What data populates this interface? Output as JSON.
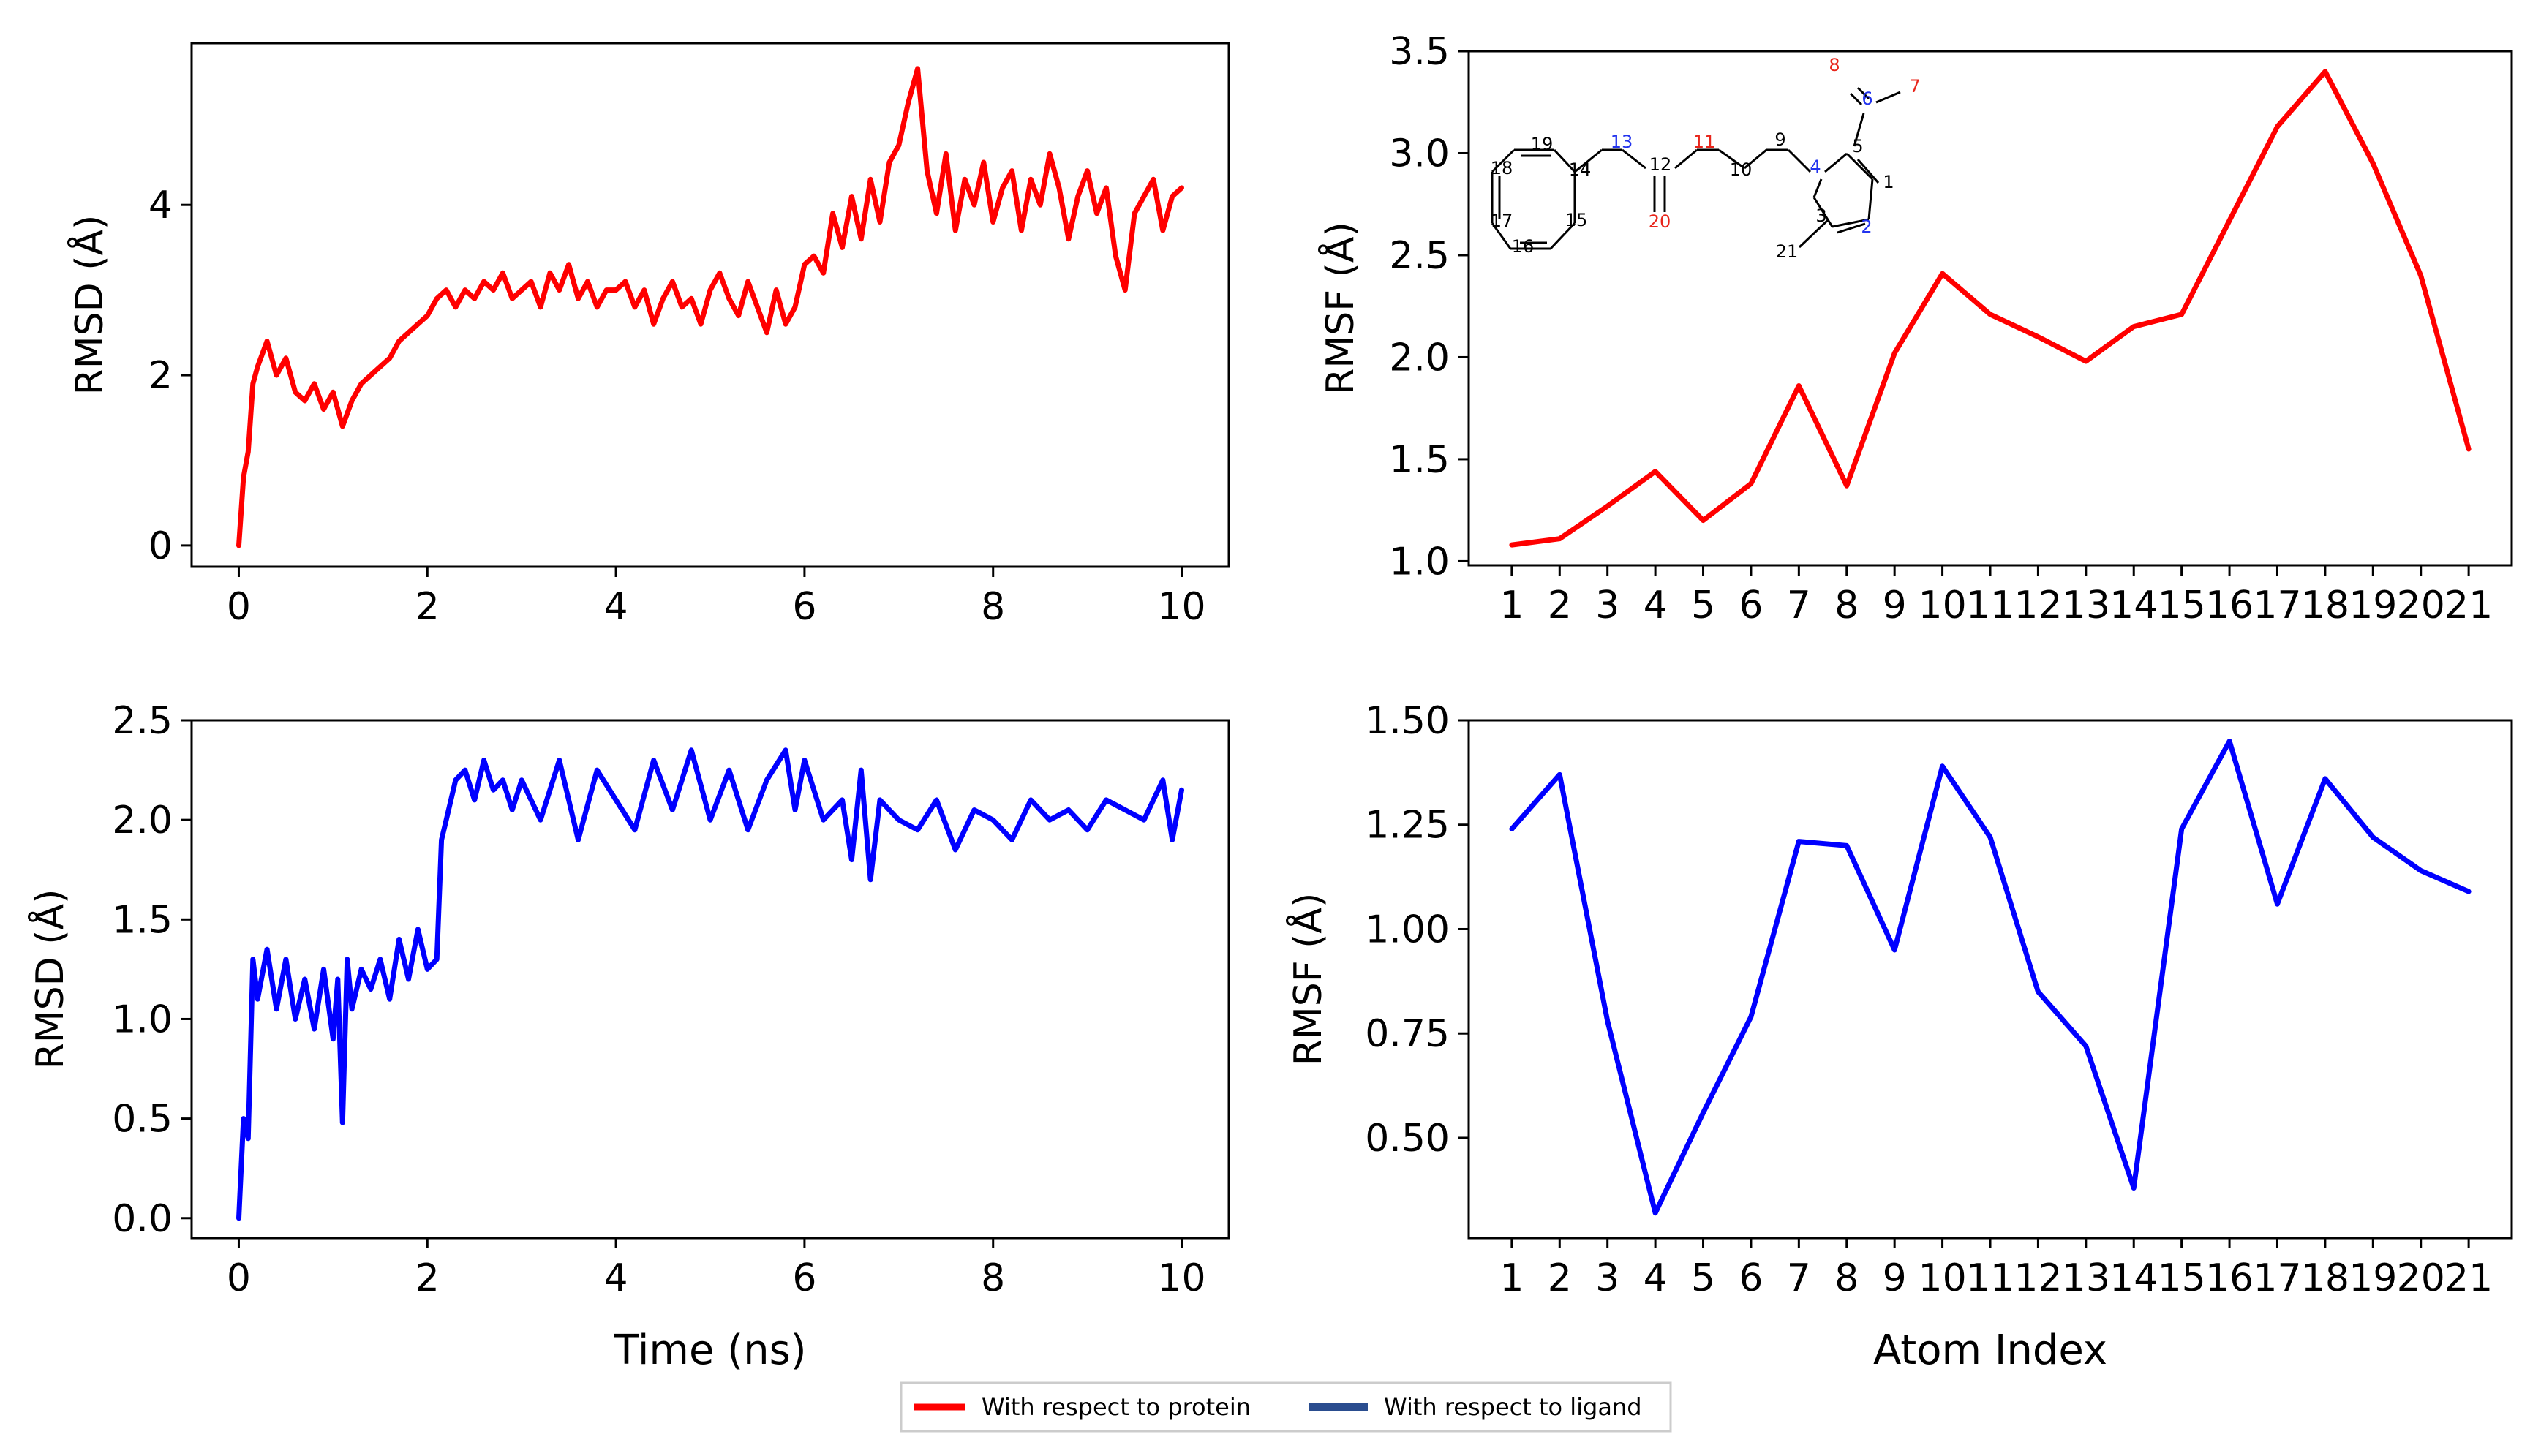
{
  "legend": {
    "entries": [
      {
        "label": "With respect to protein",
        "color": "#ff0000"
      },
      {
        "label": "With respect to ligand",
        "color": "#2a4d8f"
      }
    ]
  },
  "molecule_labels": {
    "atoms": [
      "1",
      "2",
      "3",
      "4",
      "5",
      "6",
      "7",
      "8",
      "9",
      "10",
      "11",
      "12",
      "13",
      "14",
      "15",
      "16",
      "17",
      "18",
      "19",
      "20",
      "21"
    ],
    "colors": {
      "black": "#000000",
      "red": "#e8251b",
      "blue": "#2233ee"
    }
  },
  "chart_data": [
    {
      "id": "rmsd_protein",
      "type": "line",
      "title": "",
      "xlabel": "",
      "ylabel": "RMSD (Å)",
      "color": "#ff0000",
      "xlim": [
        -0.5,
        10.5
      ],
      "ylim": [
        -0.25,
        5.9
      ],
      "xticks": [
        0,
        2,
        4,
        6,
        8,
        10
      ],
      "xtick_labels": [
        "0",
        "2",
        "4",
        "6",
        "8",
        "10"
      ],
      "yticks": [
        0,
        2,
        4
      ],
      "ytick_labels": [
        "0",
        "2",
        "4"
      ],
      "x": [
        0,
        0.05,
        0.1,
        0.15,
        0.2,
        0.3,
        0.4,
        0.5,
        0.6,
        0.7,
        0.8,
        0.9,
        1.0,
        1.1,
        1.2,
        1.3,
        1.4,
        1.5,
        1.6,
        1.7,
        1.8,
        1.9,
        2.0,
        2.1,
        2.2,
        2.3,
        2.4,
        2.5,
        2.6,
        2.7,
        2.8,
        2.9,
        3.0,
        3.1,
        3.2,
        3.3,
        3.4,
        3.5,
        3.6,
        3.7,
        3.8,
        3.9,
        4.0,
        4.1,
        4.2,
        4.3,
        4.4,
        4.5,
        4.6,
        4.7,
        4.8,
        4.9,
        5.0,
        5.1,
        5.2,
        5.3,
        5.4,
        5.5,
        5.6,
        5.7,
        5.8,
        5.9,
        6.0,
        6.1,
        6.2,
        6.3,
        6.4,
        6.5,
        6.6,
        6.7,
        6.8,
        6.9,
        7.0,
        7.1,
        7.2,
        7.3,
        7.4,
        7.5,
        7.6,
        7.7,
        7.8,
        7.9,
        8.0,
        8.1,
        8.2,
        8.3,
        8.4,
        8.5,
        8.6,
        8.7,
        8.8,
        8.9,
        9.0,
        9.1,
        9.2,
        9.3,
        9.4,
        9.5,
        9.6,
        9.7,
        9.8,
        9.9,
        10.0
      ],
      "y": [
        0.0,
        0.8,
        1.1,
        1.9,
        2.1,
        2.4,
        2.0,
        2.2,
        1.8,
        1.7,
        1.9,
        1.6,
        1.8,
        1.4,
        1.7,
        1.9,
        2.0,
        2.1,
        2.2,
        2.4,
        2.5,
        2.6,
        2.7,
        2.9,
        3.0,
        2.8,
        3.0,
        2.9,
        3.1,
        3.0,
        3.2,
        2.9,
        3.0,
        3.1,
        2.8,
        3.2,
        3.0,
        3.3,
        2.9,
        3.1,
        2.8,
        3.0,
        3.0,
        3.1,
        2.8,
        3.0,
        2.6,
        2.9,
        3.1,
        2.8,
        2.9,
        2.6,
        3.0,
        3.2,
        2.9,
        2.7,
        3.1,
        2.8,
        2.5,
        3.0,
        2.6,
        2.8,
        3.3,
        3.4,
        3.2,
        3.9,
        3.5,
        4.1,
        3.6,
        4.3,
        3.8,
        4.5,
        4.7,
        5.2,
        5.6,
        4.4,
        3.9,
        4.6,
        3.7,
        4.3,
        4.0,
        4.5,
        3.8,
        4.2,
        4.4,
        3.7,
        4.3,
        4.0,
        4.6,
        4.2,
        3.6,
        4.1,
        4.4,
        3.9,
        4.2,
        3.4,
        3.0,
        3.9,
        4.1,
        4.3,
        3.7,
        4.1,
        4.2
      ]
    },
    {
      "id": "rmsf_protein",
      "type": "line",
      "title": "",
      "xlabel": "",
      "ylabel": "RMSF (Å)",
      "color": "#ff0000",
      "xlim": [
        0.1,
        21.9
      ],
      "ylim": [
        0.98,
        3.5
      ],
      "categories": [
        "1",
        "2",
        "3",
        "4",
        "5",
        "6",
        "7",
        "8",
        "9",
        "10",
        "11",
        "12",
        "13",
        "14",
        "15",
        "16",
        "17",
        "18",
        "19",
        "20",
        "21"
      ],
      "yticks": [
        1.0,
        1.5,
        2.0,
        2.5,
        3.0,
        3.5
      ],
      "ytick_labels": [
        "1.0",
        "1.5",
        "2.0",
        "2.5",
        "3.0",
        "3.5"
      ],
      "values": [
        1.08,
        1.11,
        1.27,
        1.44,
        1.2,
        1.38,
        1.86,
        1.37,
        2.02,
        2.41,
        2.21,
        2.1,
        1.98,
        2.15,
        2.21,
        2.67,
        3.13,
        3.4,
        2.95,
        2.4,
        1.55
      ]
    },
    {
      "id": "rmsd_ligand",
      "type": "line",
      "title": "",
      "xlabel": "Time (ns)",
      "ylabel": "RMSD (Å)",
      "color": "#0000ff",
      "xlim": [
        -0.5,
        10.5
      ],
      "ylim": [
        -0.1,
        2.5
      ],
      "xticks": [
        0,
        2,
        4,
        6,
        8,
        10
      ],
      "xtick_labels": [
        "0",
        "2",
        "4",
        "6",
        "8",
        "10"
      ],
      "yticks": [
        0.0,
        0.5,
        1.0,
        1.5,
        2.0,
        2.5
      ],
      "ytick_labels": [
        "0.0",
        "0.5",
        "1.0",
        "1.5",
        "2.0",
        "2.5"
      ],
      "x": [
        0,
        0.05,
        0.1,
        0.15,
        0.2,
        0.3,
        0.4,
        0.5,
        0.6,
        0.7,
        0.8,
        0.9,
        1.0,
        1.05,
        1.1,
        1.15,
        1.2,
        1.3,
        1.4,
        1.5,
        1.6,
        1.7,
        1.8,
        1.9,
        2.0,
        2.1,
        2.15,
        2.2,
        2.3,
        2.4,
        2.5,
        2.6,
        2.7,
        2.8,
        2.9,
        3.0,
        3.2,
        3.4,
        3.6,
        3.8,
        4.0,
        4.2,
        4.4,
        4.6,
        4.8,
        5.0,
        5.2,
        5.4,
        5.6,
        5.8,
        5.9,
        6.0,
        6.2,
        6.4,
        6.5,
        6.6,
        6.7,
        6.8,
        7.0,
        7.2,
        7.4,
        7.6,
        7.8,
        8.0,
        8.2,
        8.4,
        8.6,
        8.8,
        9.0,
        9.2,
        9.4,
        9.6,
        9.8,
        9.9,
        10.0
      ],
      "y": [
        0.0,
        0.5,
        0.4,
        1.3,
        1.1,
        1.35,
        1.05,
        1.3,
        1.0,
        1.2,
        0.95,
        1.25,
        0.9,
        1.2,
        0.48,
        1.3,
        1.05,
        1.25,
        1.15,
        1.3,
        1.1,
        1.4,
        1.2,
        1.45,
        1.25,
        1.3,
        1.9,
        2.0,
        2.2,
        2.25,
        2.1,
        2.3,
        2.15,
        2.2,
        2.05,
        2.2,
        2.0,
        2.3,
        1.9,
        2.25,
        2.1,
        1.95,
        2.3,
        2.05,
        2.35,
        2.0,
        2.25,
        1.95,
        2.2,
        2.35,
        2.05,
        2.3,
        2.0,
        2.1,
        1.8,
        2.25,
        1.7,
        2.1,
        2.0,
        1.95,
        2.1,
        1.85,
        2.05,
        2.0,
        1.9,
        2.1,
        2.0,
        2.05,
        1.95,
        2.1,
        2.05,
        2.0,
        2.2,
        1.9,
        2.15
      ]
    },
    {
      "id": "rmsf_ligand",
      "type": "line",
      "title": "",
      "xlabel": "Atom Index",
      "ylabel": "RMSF (Å)",
      "color": "#0000ff",
      "xlim": [
        0.1,
        21.9
      ],
      "ylim": [
        0.26,
        1.5
      ],
      "categories": [
        "1",
        "2",
        "3",
        "4",
        "5",
        "6",
        "7",
        "8",
        "9",
        "10",
        "11",
        "12",
        "13",
        "14",
        "15",
        "16",
        "17",
        "18",
        "19",
        "20",
        "21"
      ],
      "yticks": [
        0.5,
        0.75,
        1.0,
        1.25,
        1.5
      ],
      "ytick_labels": [
        "0.50",
        "0.75",
        "1.00",
        "1.25",
        "1.50"
      ],
      "values": [
        1.24,
        1.37,
        0.78,
        0.32,
        0.56,
        0.79,
        1.21,
        1.2,
        0.95,
        1.39,
        1.22,
        0.85,
        0.72,
        0.38,
        1.24,
        1.45,
        1.06,
        1.36,
        1.22,
        1.14,
        1.09
      ]
    }
  ]
}
